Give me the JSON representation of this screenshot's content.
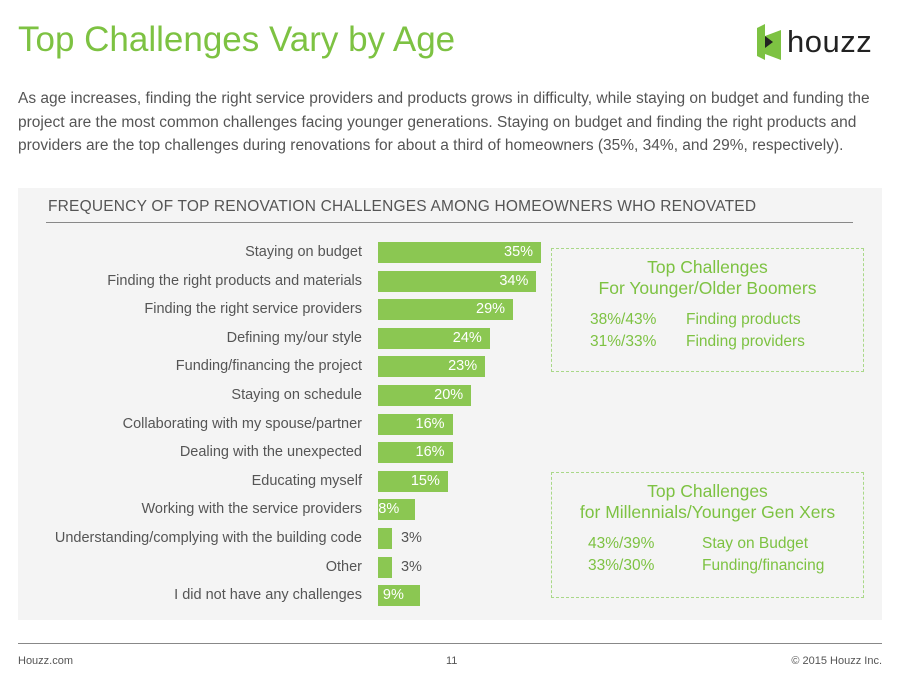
{
  "header": {
    "title": "Top Challenges Vary by Age",
    "logo_text": "houzz"
  },
  "intro": "As age increases, finding the right service providers and products grows in difficulty, while staying on budget and funding the project are the most common challenges facing younger generations. Staying on budget and finding the right products and providers are the top challenges during renovations for about a third of homeowners (35%, 34%, and 29%, respectively).",
  "chart_data": {
    "type": "bar",
    "orientation": "horizontal",
    "title": "FREQUENCY OF TOP RENOVATION CHALLENGES AMONG HOMEOWNERS WHO RENOVATED",
    "categories": [
      "Staying on budget",
      "Finding the right products and materials",
      "Finding the right service providers",
      "Defining my/our style",
      "Funding/financing the project",
      "Staying on schedule",
      "Collaborating with my spouse/partner",
      "Dealing with the unexpected",
      "Educating myself",
      "Working with the service providers",
      "Understanding/complying with the building code",
      "Other",
      "I did not have any challenges"
    ],
    "values": [
      35,
      34,
      29,
      24,
      23,
      20,
      16,
      16,
      15,
      8,
      3,
      3,
      9
    ],
    "value_labels": [
      "35%",
      "34%",
      "29%",
      "24%",
      "23%",
      "20%",
      "16%",
      "16%",
      "15%",
      "8%",
      "3%",
      "3%",
      "9%"
    ],
    "xlim": [
      0,
      35
    ],
    "color": "#8bc752"
  },
  "callouts": [
    {
      "title1": "Top Challenges",
      "title2": "For Younger/Older Boomers",
      "rows": [
        {
          "pct": "38%/43%",
          "label": "Finding products"
        },
        {
          "pct": "31%/33%",
          "label": "Finding providers"
        }
      ]
    },
    {
      "title1": "Top Challenges",
      "title2": "for Millennials/Younger Gen Xers",
      "rows": [
        {
          "pct": "43%/39%",
          "label": "Stay on Budget"
        },
        {
          "pct": "33%/30%",
          "label": "Funding/financing"
        }
      ]
    }
  ],
  "footer": {
    "left": "Houzz.com",
    "page": "11",
    "right": "© 2015 Houzz Inc."
  }
}
